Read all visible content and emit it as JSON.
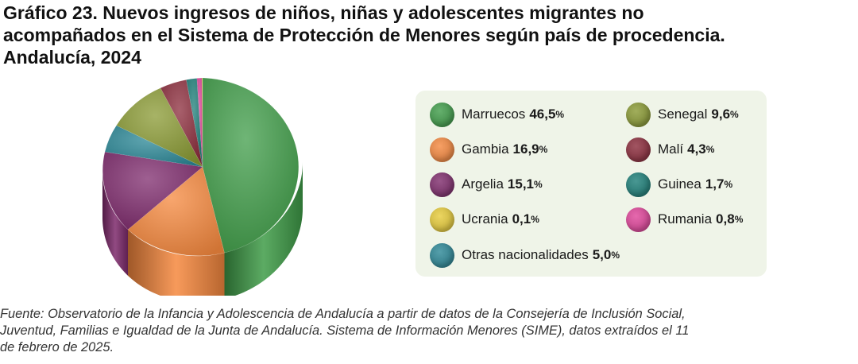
{
  "title_lines": [
    "Gráfico 23. Nuevos ingresos de niños, niñas y adolescentes migrantes no",
    "acompañados en el Sistema de Protección de Menores según país de procedencia.",
    "Andalucía, 2024"
  ],
  "chart_data": {
    "type": "pie",
    "style": "3d",
    "legend_position": "right",
    "categories": [
      "Marruecos",
      "Gambia",
      "Argelia",
      "Ucrania",
      "Otras nacionalidades",
      "Senegal",
      "Malí",
      "Guinea",
      "Rumania"
    ],
    "values": [
      46.5,
      16.9,
      15.1,
      0.1,
      5.0,
      9.6,
      4.3,
      1.7,
      0.8
    ],
    "value_labels": [
      "46,5",
      "16,9",
      "15,1",
      "0,1",
      "5,0",
      "9,6",
      "4,3",
      "1,7",
      "0,8"
    ],
    "unit": "%",
    "colors": [
      "#3f9c48",
      "#f5883e",
      "#7e2a6c",
      "#e7cc3a",
      "#2a8796",
      "#8a9a33",
      "#8b2b3b",
      "#1c7e78",
      "#e0449a"
    ]
  },
  "source_lines": [
    "Fuente: Observatorio de la Infancia y Adolescencia de Andalucía a partir de datos de la Consejería de Inclusión Social,",
    "Juventud, Familias e Igualdad de la Junta de Andalucía. Sistema de Información Menores (SIME), datos extraídos el 11",
    "de febrero de 2025."
  ]
}
